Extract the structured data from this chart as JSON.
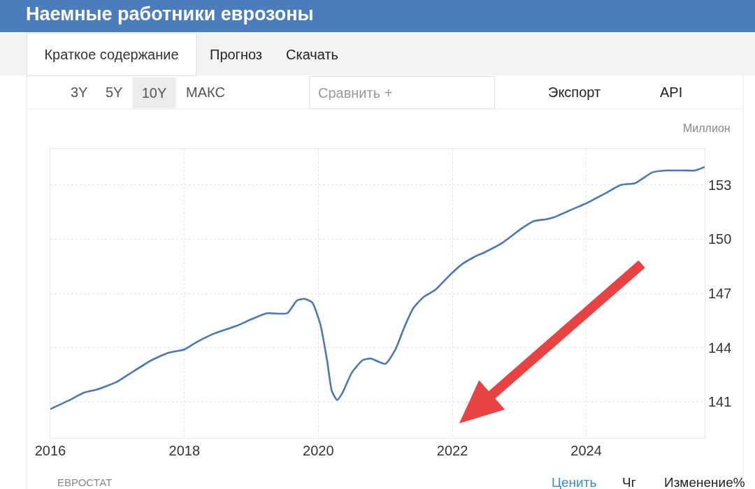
{
  "chart_data": {
    "type": "line",
    "title": "Наемные работники еврозоны",
    "ylabel": "Миллион",
    "annotations": [
      "Краткое содержание",
      "Прогноз",
      "Скачать",
      "3Y",
      "5Y",
      "10Y",
      "МАКС",
      "Сравнить +",
      "Экспорт",
      "API",
      "ЕВРОСТАТ",
      "Ценить",
      "Чг",
      "Изменение%"
    ],
    "x": [
      "2016-01-01",
      "2016-04-15",
      "2016-07-01",
      "2016-09-16",
      "2016-12-27",
      "2017-02-28",
      "2017-07-05",
      "2017-10-01",
      "2018-01-01",
      "2018-03-08",
      "2018-06-18",
      "2018-10-12",
      "2019-01-08",
      "2019-03-25",
      "2019-07-16",
      "2019-09-06",
      "2019-10-16",
      "2019-11-29",
      "2020-01-12",
      "2020-02-18",
      "2020-03-15",
      "2020-04-13",
      "2020-05-12",
      "2020-07-01",
      "2020-08-29",
      "2020-10-12",
      "2021-01-01",
      "2021-02-25",
      "2021-04-13",
      "2021-06-03",
      "2021-07-28",
      "2021-10-01",
      "2021-12-17",
      "2022-02-21",
      "2022-04-28",
      "2022-07-01",
      "2022-10-01",
      "2023-01-15",
      "2023-03-22",
      "2023-05-27",
      "2023-07-06",
      "2023-10-05",
      "2024-01-05",
      "2024-04-08",
      "2024-07-08",
      "2024-09-24",
      "2024-12-28",
      "2025-03-15",
      "2025-06-28",
      "2025-08-18",
      "2025-10-08"
    ],
    "values": [
      140.6,
      141.1,
      141.5,
      141.7,
      142.1,
      142.5,
      143.3,
      143.7,
      143.9,
      144.3,
      144.8,
      145.2,
      145.6,
      145.9,
      145.9,
      146.6,
      146.7,
      146.5,
      145.3,
      143.3,
      141.6,
      141.1,
      141.5,
      142.6,
      143.3,
      143.4,
      143.1,
      143.9,
      145.1,
      146.2,
      146.8,
      147.2,
      148.0,
      148.6,
      149.0,
      149.3,
      149.8,
      150.6,
      151.0,
      151.1,
      151.2,
      151.6,
      152.0,
      152.5,
      153.0,
      153.1,
      153.7,
      153.8,
      153.8,
      153.8,
      154.0
    ],
    "color": "#4a78b5",
    "line_style": "solid",
    "xlim": [
      "2016-01-01",
      "2025-10-08"
    ],
    "xticks": [
      "2016",
      "2018",
      "2020",
      "2022",
      "2024"
    ],
    "ylim": [
      139,
      155
    ],
    "yticks": [
      141,
      144,
      147,
      150,
      153
    ],
    "grid": true
  }
}
